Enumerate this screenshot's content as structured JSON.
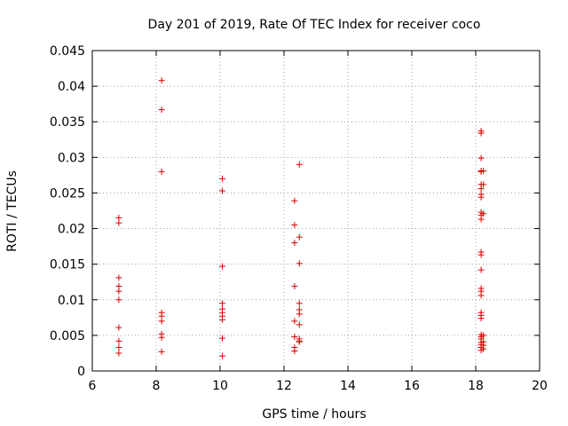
{
  "chart_data": {
    "type": "scatter",
    "title": "Day 201 of 2019, Rate Of TEC Index for receiver coco",
    "xlabel": "GPS time / hours",
    "ylabel": "ROTI / TECUs",
    "xlim": [
      6,
      20
    ],
    "ylim": [
      0,
      0.045
    ],
    "xticks": [
      "6",
      "8",
      "10",
      "12",
      "14",
      "16",
      "18",
      "20"
    ],
    "yticks": [
      "0",
      "0.005",
      "0.01",
      "0.015",
      "0.02",
      "0.025",
      "0.03",
      "0.035",
      "0.04",
      "0.045"
    ],
    "grid": true,
    "marker": "+",
    "series": [
      {
        "name": "ROTI",
        "color": "#e00000",
        "points": [
          [
            6.83,
            0.0215
          ],
          [
            6.83,
            0.0208
          ],
          [
            6.83,
            0.0131
          ],
          [
            6.83,
            0.0119
          ],
          [
            6.83,
            0.0112
          ],
          [
            6.83,
            0.01
          ],
          [
            6.83,
            0.0061
          ],
          [
            6.83,
            0.0042
          ],
          [
            6.83,
            0.0033
          ],
          [
            6.83,
            0.0025
          ],
          [
            8.17,
            0.0408
          ],
          [
            8.17,
            0.0367
          ],
          [
            8.17,
            0.028
          ],
          [
            8.17,
            0.0082
          ],
          [
            8.17,
            0.0077
          ],
          [
            8.17,
            0.007
          ],
          [
            8.17,
            0.0052
          ],
          [
            8.17,
            0.0047
          ],
          [
            8.17,
            0.0027
          ],
          [
            10.07,
            0.027
          ],
          [
            10.07,
            0.0253
          ],
          [
            10.07,
            0.0147
          ],
          [
            10.07,
            0.0095
          ],
          [
            10.07,
            0.0087
          ],
          [
            10.07,
            0.0082
          ],
          [
            10.07,
            0.0077
          ],
          [
            10.07,
            0.0072
          ],
          [
            10.07,
            0.0046
          ],
          [
            10.07,
            0.0021
          ],
          [
            12.33,
            0.0239
          ],
          [
            12.33,
            0.0205
          ],
          [
            12.33,
            0.018
          ],
          [
            12.33,
            0.0119
          ],
          [
            12.33,
            0.007
          ],
          [
            12.33,
            0.0048
          ],
          [
            12.33,
            0.0033
          ],
          [
            12.33,
            0.0028
          ],
          [
            12.48,
            0.029
          ],
          [
            12.48,
            0.0188
          ],
          [
            12.48,
            0.0151
          ],
          [
            12.48,
            0.0095
          ],
          [
            12.48,
            0.0086
          ],
          [
            12.48,
            0.008
          ],
          [
            12.48,
            0.0065
          ],
          [
            12.48,
            0.0045
          ],
          [
            12.48,
            0.0042
          ],
          [
            12.48,
            0.0041
          ],
          [
            18.17,
            0.0337
          ],
          [
            18.17,
            0.0334
          ],
          [
            18.17,
            0.0299
          ],
          [
            18.17,
            0.0281
          ],
          [
            18.17,
            0.028
          ],
          [
            18.17,
            0.0262
          ],
          [
            18.17,
            0.0256
          ],
          [
            18.17,
            0.0248
          ],
          [
            18.17,
            0.0244
          ],
          [
            18.17,
            0.0223
          ],
          [
            18.17,
            0.0219
          ],
          [
            18.17,
            0.0213
          ],
          [
            18.17,
            0.0167
          ],
          [
            18.17,
            0.0163
          ],
          [
            18.17,
            0.0142
          ],
          [
            18.17,
            0.0116
          ],
          [
            18.17,
            0.0112
          ],
          [
            18.17,
            0.0106
          ],
          [
            18.17,
            0.0082
          ],
          [
            18.17,
            0.0078
          ],
          [
            18.17,
            0.0074
          ],
          [
            18.17,
            0.0051
          ],
          [
            18.17,
            0.0048
          ],
          [
            18.17,
            0.0045
          ],
          [
            18.17,
            0.004
          ],
          [
            18.17,
            0.0037
          ],
          [
            18.17,
            0.0033
          ],
          [
            18.17,
            0.0029
          ],
          [
            18.24,
            0.0281
          ],
          [
            18.24,
            0.0262
          ],
          [
            18.24,
            0.0221
          ],
          [
            18.24,
            0.005
          ],
          [
            18.24,
            0.0041
          ],
          [
            18.24,
            0.0036
          ],
          [
            18.24,
            0.0031
          ]
        ]
      }
    ]
  }
}
